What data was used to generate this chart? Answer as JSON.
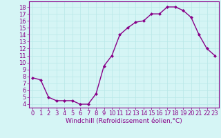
{
  "x": [
    0,
    1,
    2,
    3,
    4,
    5,
    6,
    7,
    8,
    9,
    10,
    11,
    12,
    13,
    14,
    15,
    16,
    17,
    18,
    19,
    20,
    21,
    22,
    23
  ],
  "y": [
    7.8,
    7.5,
    5.0,
    4.5,
    4.5,
    4.5,
    4.0,
    4.0,
    5.5,
    9.5,
    11.0,
    14.0,
    15.0,
    15.8,
    16.0,
    17.0,
    17.0,
    18.0,
    18.0,
    17.5,
    16.5,
    14.0,
    12.0,
    11.0
  ],
  "line_color": "#880088",
  "marker": "D",
  "marker_size": 2.0,
  "linewidth": 1.0,
  "xlabel": "Windchill (Refroidissement éolien,°C)",
  "yticks": [
    4,
    5,
    6,
    7,
    8,
    9,
    10,
    11,
    12,
    13,
    14,
    15,
    16,
    17,
    18
  ],
  "xlim": [
    -0.5,
    23.5
  ],
  "ylim": [
    3.5,
    18.8
  ],
  "bg_color": "#d5f5f5",
  "grid_color": "#b8e8e8",
  "xlabel_fontsize": 6.5,
  "tick_fontsize": 6.0,
  "spine_color": "#880088"
}
